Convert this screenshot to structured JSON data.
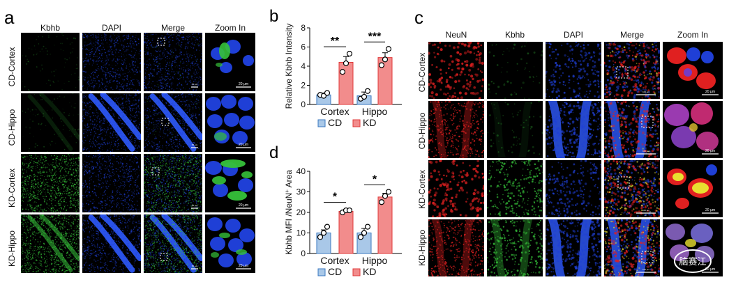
{
  "panels": {
    "a": {
      "label": "a",
      "columns": [
        "Kbhb",
        "DAPI",
        "Merge",
        "Zoom In"
      ],
      "rows": [
        "CD-Cortex",
        "CD-Hippo",
        "KD-Cortex",
        "KD-Hippo"
      ],
      "scale_small": "50 μm",
      "scale_zoom": "20 μm"
    },
    "b": {
      "label": "b"
    },
    "c": {
      "label": "c",
      "columns": [
        "NeuN",
        "Kbhb",
        "DAPI",
        "Merge",
        "Zoom In"
      ],
      "rows": [
        "CD-Cortex",
        "CD-Hippo",
        "KD-Cortex",
        "KD-Hippo"
      ],
      "scale_small": "100 μm",
      "scale_zoom": "20 μm",
      "watermark": "脑赛江"
    },
    "d": {
      "label": "d"
    }
  },
  "colors": {
    "cd_fill": "#a9c8e8",
    "cd_edge": "#3a78c0",
    "kd_fill": "#f28c8c",
    "kd_edge": "#e03a3a",
    "blue_ch": "#1f3fd6",
    "green_ch": "#36c23a",
    "red_ch": "#e02020"
  },
  "chart_data": [
    {
      "type": "bar",
      "panel": "b",
      "ylabel": "Relative Kbhb Intensity",
      "ylim": [
        0,
        8
      ],
      "yticks": [
        "0",
        "2",
        "4",
        "6",
        "8"
      ],
      "categories": [
        "Cortex",
        "Hippo"
      ],
      "series": [
        {
          "name": "CD",
          "values": [
            1.0,
            0.9
          ],
          "errors": [
            0.2,
            0.4
          ],
          "points": [
            [
              1.0,
              0.9,
              1.2
            ],
            [
              0.6,
              0.8,
              1.4
            ]
          ]
        },
        {
          "name": "KD",
          "values": [
            4.4,
            4.9
          ],
          "errors": [
            0.6,
            0.5
          ],
          "points": [
            [
              3.4,
              4.3,
              5.3
            ],
            [
              4.1,
              4.7,
              5.8
            ]
          ]
        }
      ],
      "significance": [
        "**",
        "***"
      ],
      "legend": [
        "CD",
        "KD"
      ]
    },
    {
      "type": "bar",
      "panel": "d",
      "ylabel": "Kbhb MFI /NeuN",
      "ylabel_sup": "+",
      "ylabel_tail": " Area",
      "ylim": [
        0,
        40
      ],
      "yticks": [
        "0",
        "10",
        "20",
        "30",
        "40"
      ],
      "categories": [
        "Cortex",
        "Hippo"
      ],
      "series": [
        {
          "name": "CD",
          "values": [
            10,
            10
          ],
          "errors": [
            1.5,
            2.2
          ],
          "points": [
            [
              8,
              10,
              13
            ],
            [
              8,
              10,
              13
            ]
          ]
        },
        {
          "name": "KD",
          "values": [
            20.5,
            27.5
          ],
          "errors": [
            1.0,
            1.8
          ],
          "points": [
            [
              20,
              21,
              21
            ],
            [
              25,
              28,
              30
            ]
          ]
        }
      ],
      "significance": [
        "*",
        "*"
      ],
      "legend": [
        "CD",
        "KD"
      ]
    }
  ]
}
